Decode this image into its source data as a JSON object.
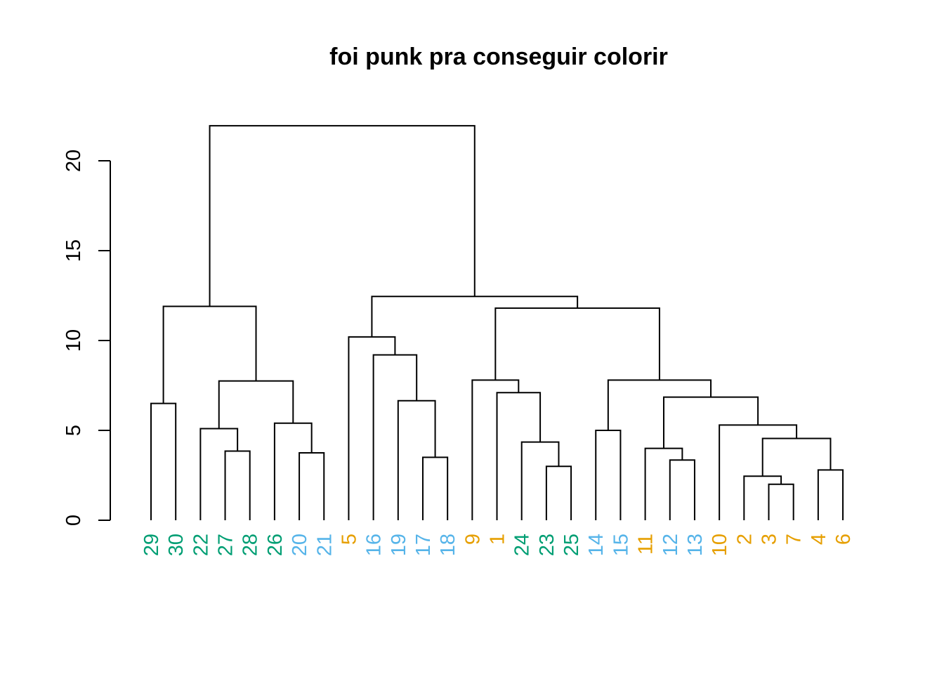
{
  "chart_data": {
    "type": "dendrogram",
    "title": "foi punk pra conseguir colorir",
    "xlabel": "",
    "ylabel": "",
    "ylim": [
      0,
      22
    ],
    "yticks": [
      "0",
      "5",
      "10",
      "15",
      "20"
    ],
    "group_colors": {
      "A": "#E69F00",
      "B": "#56B4E9",
      "C": "#009E73"
    },
    "leaves": [
      {
        "label": "29",
        "group": "C"
      },
      {
        "label": "30",
        "group": "C"
      },
      {
        "label": "22",
        "group": "C"
      },
      {
        "label": "27",
        "group": "C"
      },
      {
        "label": "28",
        "group": "C"
      },
      {
        "label": "26",
        "group": "C"
      },
      {
        "label": "20",
        "group": "B"
      },
      {
        "label": "21",
        "group": "B"
      },
      {
        "label": "5",
        "group": "A"
      },
      {
        "label": "16",
        "group": "B"
      },
      {
        "label": "19",
        "group": "B"
      },
      {
        "label": "17",
        "group": "B"
      },
      {
        "label": "18",
        "group": "B"
      },
      {
        "label": "9",
        "group": "A"
      },
      {
        "label": "1",
        "group": "A"
      },
      {
        "label": "24",
        "group": "C"
      },
      {
        "label": "23",
        "group": "C"
      },
      {
        "label": "25",
        "group": "C"
      },
      {
        "label": "14",
        "group": "B"
      },
      {
        "label": "15",
        "group": "B"
      },
      {
        "label": "11",
        "group": "A"
      },
      {
        "label": "12",
        "group": "B"
      },
      {
        "label": "13",
        "group": "B"
      },
      {
        "label": "10",
        "group": "A"
      },
      {
        "label": "2",
        "group": "A"
      },
      {
        "label": "3",
        "group": "A"
      },
      {
        "label": "7",
        "group": "A"
      },
      {
        "label": "4",
        "group": "A"
      },
      {
        "label": "6",
        "group": "A"
      }
    ],
    "merges": [
      {
        "left": "L29",
        "right": "L30",
        "height": 6.5
      },
      {
        "left": "L27",
        "right": "L28",
        "height": 3.85
      },
      {
        "left": "L22",
        "right": "M2",
        "height": 5.1
      },
      {
        "left": "L20",
        "right": "L21",
        "height": 3.75
      },
      {
        "left": "L26",
        "right": "M4",
        "height": 5.4
      },
      {
        "left": "M3",
        "right": "M5",
        "height": 7.75
      },
      {
        "left": "M1",
        "right": "M6",
        "height": 11.9
      },
      {
        "left": "L17",
        "right": "L18",
        "height": 3.5
      },
      {
        "left": "L19",
        "right": "M8",
        "height": 6.65
      },
      {
        "left": "L16",
        "right": "M9",
        "height": 9.2
      },
      {
        "left": "L5",
        "right": "M10",
        "height": 10.2
      },
      {
        "left": "L23",
        "right": "L25",
        "height": 3.0
      },
      {
        "left": "L24",
        "right": "M12",
        "height": 4.35
      },
      {
        "left": "L1",
        "right": "M13",
        "height": 7.1
      },
      {
        "left": "L9",
        "right": "M14",
        "height": 7.8
      },
      {
        "left": "L14",
        "right": "L15",
        "height": 5.0
      },
      {
        "left": "L12",
        "right": "L13",
        "height": 3.35
      },
      {
        "left": "L11",
        "right": "M17",
        "height": 4.0
      },
      {
        "left": "L3",
        "right": "L7",
        "height": 2.0
      },
      {
        "left": "L2",
        "right": "M19",
        "height": 2.45
      },
      {
        "left": "L4",
        "right": "L6",
        "height": 2.8
      },
      {
        "left": "M20",
        "right": "M21",
        "height": 4.55
      },
      {
        "left": "L10",
        "right": "M22",
        "height": 5.3
      },
      {
        "left": "M18",
        "right": "M23",
        "height": 6.85
      },
      {
        "left": "M16",
        "right": "M24",
        "height": 7.8
      },
      {
        "left": "M15",
        "right": "M25",
        "height": 11.8
      },
      {
        "left": "M11",
        "right": "M26",
        "height": 12.45
      },
      {
        "left": "M7",
        "right": "M27",
        "height": 21.95
      }
    ]
  }
}
